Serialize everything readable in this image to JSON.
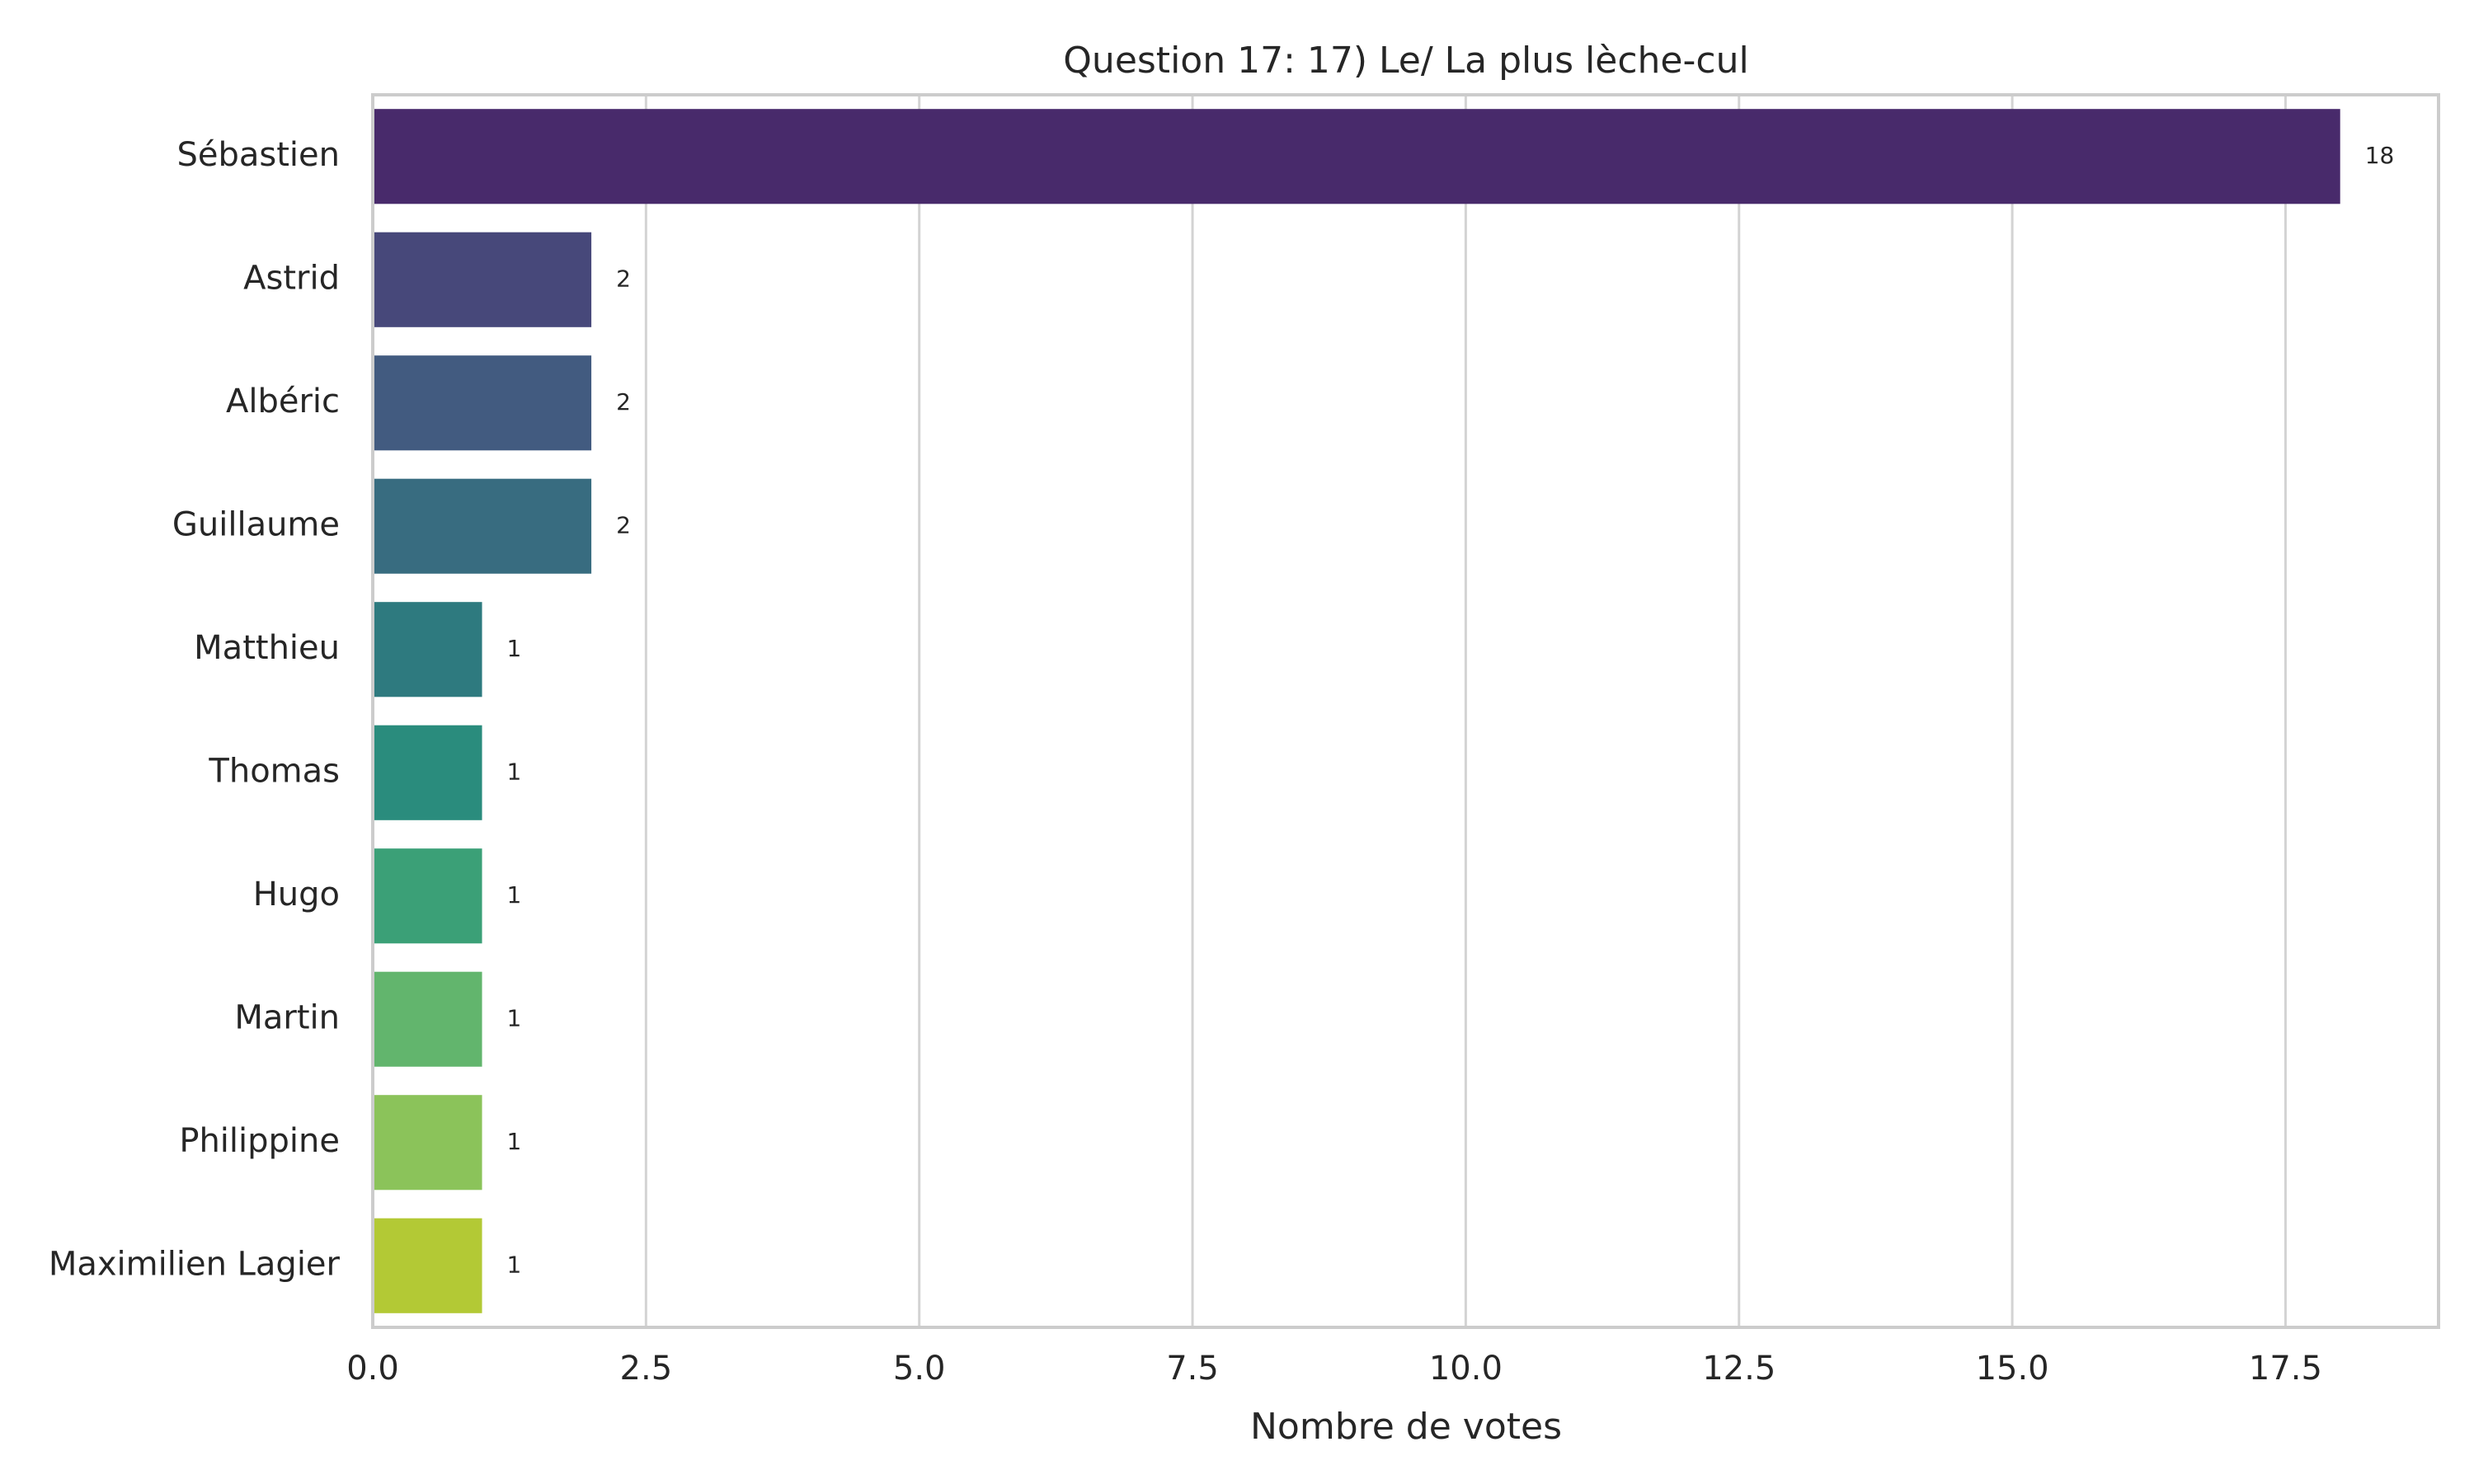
{
  "chart_data": {
    "type": "bar",
    "orientation": "horizontal",
    "title": "Question 17: 17) Le/ La plus lèche-cul",
    "xlabel": "Nombre de votes",
    "ylabel": "",
    "categories": [
      "Sébastien",
      "Astrid",
      "Albéric",
      "Guillaume",
      "Matthieu",
      "Thomas",
      "Hugo",
      "Martin",
      "Philippine",
      "Maximilien Lagier"
    ],
    "values": [
      18,
      2,
      2,
      2,
      1,
      1,
      1,
      1,
      1,
      1
    ],
    "value_labels": [
      "18",
      "2",
      "2",
      "2",
      "1",
      "1",
      "1",
      "1",
      "1",
      "1"
    ],
    "xlim": [
      0,
      18.9
    ],
    "xticks": [
      0,
      2.5,
      5,
      7.5,
      10,
      12.5,
      15,
      17.5
    ],
    "xtick_labels": [
      "0.0",
      "2.5",
      "5.0",
      "7.5",
      "10.0",
      "12.5",
      "15.0",
      "17.5"
    ],
    "grid": true,
    "colors": [
      "#482a6b",
      "#47487a",
      "#425b80",
      "#386c80",
      "#2e7a7f",
      "#2a8c7d",
      "#3ba077",
      "#62b56d",
      "#8bc35a",
      "#b3c935"
    ]
  }
}
